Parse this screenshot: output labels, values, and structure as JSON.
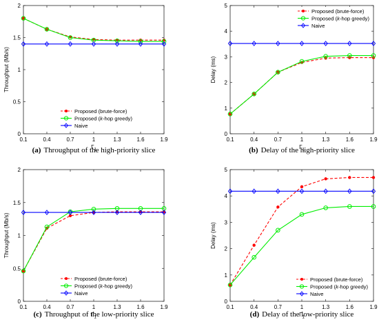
{
  "chart_data": [
    {
      "type": "line",
      "caption_tag": "(a)",
      "caption_text": "Throughput of the high-priority slice",
      "xlabel": "Γ",
      "xlabel_sub": "1",
      "ylabel": "Throughput (Mb/s)",
      "x": [
        0.1,
        0.4,
        0.7,
        1,
        1.3,
        1.6,
        1.9
      ],
      "x_ticks": [
        "0.1",
        "0.4",
        "0.7",
        "1",
        "1.3",
        "1.6",
        "1.9"
      ],
      "xlim": [
        0.1,
        1.9
      ],
      "ylim": [
        0,
        2
      ],
      "y_ticks": [
        "0",
        "0.5",
        "1",
        "1.5",
        "2"
      ],
      "y_tick_values": [
        0,
        0.5,
        1,
        1.5,
        2
      ],
      "legend_position": "bottom-center",
      "series": [
        {
          "name": "Proposed (brute-force)",
          "color": "#ff0000",
          "dash": true,
          "marker": "dot",
          "values": [
            1.8,
            1.63,
            1.51,
            1.47,
            1.46,
            1.46,
            1.46
          ]
        },
        {
          "name": "Proposed (k-hop greedy)",
          "name_prefix": "Proposed (",
          "name_italic": "k",
          "name_suffix": "-hop greedy)",
          "color": "#00ee00",
          "dash": false,
          "marker": "circle",
          "values": [
            1.8,
            1.63,
            1.5,
            1.46,
            1.45,
            1.44,
            1.44
          ]
        },
        {
          "name": "Naive",
          "color": "#0000ff",
          "dash": false,
          "marker": "diamond",
          "values": [
            1.4,
            1.4,
            1.4,
            1.4,
            1.4,
            1.4,
            1.4
          ]
        }
      ]
    },
    {
      "type": "line",
      "caption_tag": "(b)",
      "caption_text": "Delay of the high-priority slice",
      "xlabel": "Γ",
      "xlabel_sub": "1",
      "ylabel": "Delay (ms)",
      "x": [
        0.1,
        0.4,
        0.7,
        1,
        1.3,
        1.6,
        1.9
      ],
      "x_ticks": [
        "0.1",
        "0.4",
        "0.7",
        "1",
        "1.3",
        "1.6",
        "1.9"
      ],
      "xlim": [
        0.1,
        1.9
      ],
      "ylim": [
        0,
        5
      ],
      "y_ticks": [
        "0",
        "1",
        "2",
        "3",
        "4",
        "5"
      ],
      "y_tick_values": [
        0,
        1,
        2,
        3,
        4,
        5
      ],
      "legend_position": "top-right",
      "series": [
        {
          "name": "Proposed (brute-force)",
          "color": "#ff0000",
          "dash": true,
          "marker": "dot",
          "values": [
            0.77,
            1.55,
            2.4,
            2.78,
            2.95,
            2.97,
            2.97
          ]
        },
        {
          "name": "Proposed (k-hop greedy)",
          "name_prefix": "Proposed (",
          "name_italic": "k",
          "name_suffix": "-hop greedy)",
          "color": "#00ee00",
          "dash": false,
          "marker": "circle",
          "values": [
            0.77,
            1.55,
            2.4,
            2.82,
            3.02,
            3.05,
            3.05
          ]
        },
        {
          "name": "Naive",
          "color": "#0000ff",
          "dash": false,
          "marker": "diamond",
          "values": [
            3.52,
            3.52,
            3.52,
            3.52,
            3.52,
            3.52,
            3.52
          ]
        }
      ]
    },
    {
      "type": "line",
      "caption_tag": "(c)",
      "caption_text": "Throughput of the low-priority slice",
      "xlabel": "Γ",
      "xlabel_sub": "1",
      "ylabel": "Throughput (Mb/s)",
      "x": [
        0.1,
        0.4,
        0.7,
        1,
        1.3,
        1.6,
        1.9
      ],
      "x_ticks": [
        "0.1",
        "0.4",
        "0.7",
        "1",
        "1.3",
        "1.6",
        "1.9"
      ],
      "xlim": [
        0.1,
        1.9
      ],
      "ylim": [
        0,
        2
      ],
      "y_ticks": [
        "0",
        "0.5",
        "1",
        "1.5",
        "2"
      ],
      "y_tick_values": [
        0,
        0.5,
        1,
        1.5,
        2
      ],
      "legend_position": "bottom-center",
      "series": [
        {
          "name": "Proposed (brute-force)",
          "color": "#ff0000",
          "dash": true,
          "marker": "dot",
          "values": [
            0.46,
            1.11,
            1.3,
            1.35,
            1.36,
            1.36,
            1.36
          ]
        },
        {
          "name": "Proposed (k-hop greedy)",
          "name_prefix": "Proposed (",
          "name_italic": "k",
          "name_suffix": "-hop greedy)",
          "color": "#00ee00",
          "dash": false,
          "marker": "circle",
          "values": [
            0.46,
            1.13,
            1.36,
            1.4,
            1.41,
            1.41,
            1.41
          ]
        },
        {
          "name": "Naive",
          "color": "#0000ff",
          "dash": false,
          "marker": "diamond",
          "values": [
            1.35,
            1.35,
            1.35,
            1.35,
            1.35,
            1.35,
            1.35
          ]
        }
      ]
    },
    {
      "type": "line",
      "caption_tag": "(d)",
      "caption_text": "Delay of the low-priority slice",
      "xlabel": "Γ",
      "xlabel_sub": "1",
      "ylabel": "Delay (ms)",
      "x": [
        0.1,
        0.4,
        0.7,
        1,
        1.3,
        1.6,
        1.9
      ],
      "x_ticks": [
        "0.1",
        "0.4",
        "0.7",
        "1",
        "1.3",
        "1.6",
        "1.9"
      ],
      "xlim": [
        0.1,
        1.9
      ],
      "ylim": [
        0,
        5
      ],
      "y_ticks": [
        "0",
        "1",
        "2",
        "3",
        "4",
        "5"
      ],
      "y_tick_values": [
        0,
        1,
        2,
        3,
        4,
        5
      ],
      "legend_position": "bottom-right",
      "series": [
        {
          "name": "Proposed (brute-force)",
          "color": "#ff0000",
          "dash": true,
          "marker": "dot",
          "values": [
            0.62,
            2.13,
            3.58,
            4.35,
            4.65,
            4.7,
            4.7
          ]
        },
        {
          "name": "Proposed (k-hop greedy)",
          "name_prefix": "Proposed (",
          "name_italic": "k",
          "name_suffix": "-hop greedy)",
          "color": "#00ee00",
          "dash": false,
          "marker": "circle",
          "values": [
            0.62,
            1.67,
            2.7,
            3.3,
            3.55,
            3.6,
            3.6
          ]
        },
        {
          "name": "Naive",
          "color": "#0000ff",
          "dash": false,
          "marker": "diamond",
          "values": [
            4.18,
            4.18,
            4.18,
            4.18,
            4.18,
            4.18,
            4.18
          ]
        }
      ]
    }
  ]
}
